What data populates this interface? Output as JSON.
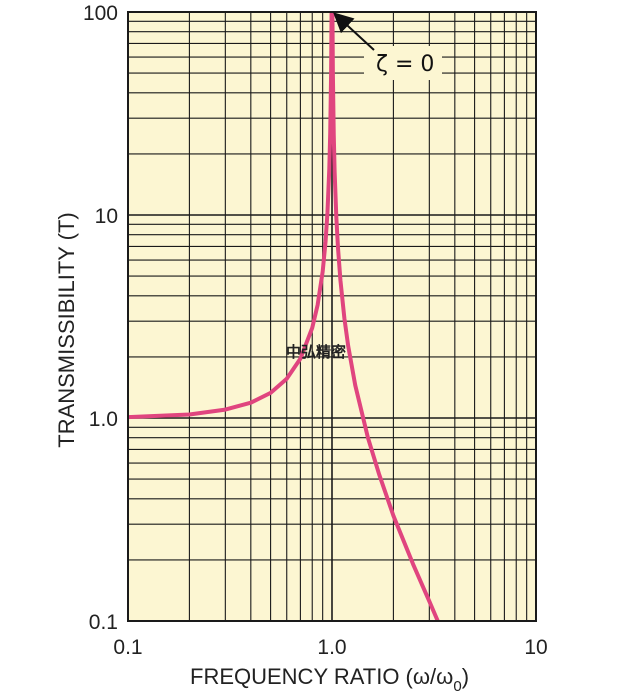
{
  "chart_data": {
    "type": "line",
    "title": "",
    "xlabel": "FREQUENCY RATIO (ω/ω",
    "xlabel_sub": "0",
    "xlabel_close": ")",
    "ylabel": "TRANSMISSIBILITY (T)",
    "xscale": "log",
    "yscale": "log",
    "xlim": [
      0.1,
      10
    ],
    "ylim": [
      0.1,
      100
    ],
    "x_tick_labels": [
      {
        "value": 0.1,
        "label": "0.1"
      },
      {
        "value": 1,
        "label": "1.0"
      },
      {
        "value": 10,
        "label": "10"
      }
    ],
    "y_tick_labels": [
      {
        "value": 0.1,
        "label": "0.1"
      },
      {
        "value": 1,
        "label": "1.0"
      },
      {
        "value": 10,
        "label": "10"
      },
      {
        "value": 100,
        "label": "100"
      }
    ],
    "grid": true,
    "series": [
      {
        "name": "ζ = 0",
        "color": "#e0457f",
        "x": [
          0.1,
          0.2,
          0.3,
          0.4,
          0.5,
          0.6,
          0.7,
          0.8,
          0.85,
          0.9,
          0.93,
          0.95,
          0.97,
          0.98,
          0.99,
          0.995,
          1.005,
          1.01,
          1.02,
          1.03,
          1.05,
          1.07,
          1.1,
          1.15,
          1.2,
          1.3,
          1.5,
          1.7,
          2.0,
          2.5,
          3.0,
          3.3
        ],
        "y": [
          1.01,
          1.04,
          1.1,
          1.19,
          1.33,
          1.56,
          1.96,
          2.78,
          3.6,
          5.26,
          7.4,
          10.3,
          16.9,
          25.3,
          50.3,
          100,
          100,
          49.7,
          24.8,
          16.4,
          9.76,
          6.9,
          4.76,
          3.1,
          2.27,
          1.45,
          0.8,
          0.53,
          0.33,
          0.19,
          0.125,
          0.1
        ]
      }
    ],
    "annotations": [
      {
        "text": "ζ = 0",
        "points_to": {
          "x": 1.0,
          "y": 100
        }
      }
    ],
    "watermark": "中弘精密",
    "colors": {
      "background": "#fcf6d2",
      "grid": "#1a1a1a",
      "curve": "#e0457f",
      "text": "#222222"
    }
  }
}
